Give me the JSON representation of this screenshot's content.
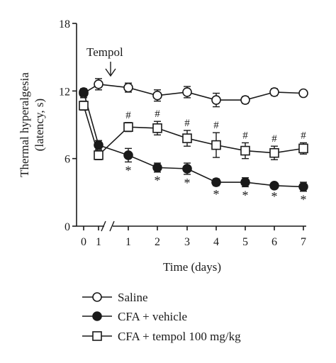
{
  "chart_data": {
    "type": "line",
    "ylabel_line1": "Thermal hyperalgesia",
    "ylabel_line2": "(latency, s)",
    "xlabel": "Time (days)",
    "ylim": [
      0,
      18
    ],
    "yticks": [
      "0",
      "6",
      "12",
      "18"
    ],
    "ytick_values": [
      0,
      6,
      12,
      18
    ],
    "xticks": [
      "0",
      "1",
      "1",
      "2",
      "3",
      "4",
      "5",
      "6",
      "7"
    ],
    "annotation": "Tempol",
    "annotation_arrow": "down",
    "axis_break": true,
    "grid": false,
    "legend_position": "bottom-left",
    "series": [
      {
        "name": "Saline",
        "marker": "open-circle",
        "values": [
          11.8,
          12.6,
          12.3,
          11.6,
          11.9,
          11.2,
          11.2,
          11.9,
          11.8
        ],
        "errors": [
          0.4,
          0.5,
          0.4,
          0.5,
          0.5,
          0.6,
          0.3,
          0.3,
          0.2
        ],
        "annotations": [
          "",
          "",
          "",
          "",
          "",
          "",
          "",
          "",
          ""
        ]
      },
      {
        "name": "CFA + vehicle",
        "marker": "filled-circle",
        "values": [
          11.9,
          7.2,
          6.3,
          5.2,
          5.1,
          3.9,
          3.9,
          3.6,
          3.5
        ],
        "errors": [
          0.3,
          0.4,
          0.6,
          0.4,
          0.5,
          0.3,
          0.4,
          0.2,
          0.4
        ],
        "annotations": [
          "",
          "*",
          "*",
          "*",
          "*",
          "*",
          "*",
          "*",
          "*"
        ]
      },
      {
        "name": "CFA + tempol 100 mg/kg",
        "marker": "open-square",
        "values": [
          10.7,
          6.3,
          8.8,
          8.7,
          7.8,
          7.2,
          6.7,
          6.5,
          6.9
        ],
        "errors": [
          0.4,
          0.4,
          0.4,
          0.6,
          0.7,
          1.1,
          0.7,
          0.6,
          0.5
        ],
        "annotations": [
          "",
          "",
          "#",
          "#",
          "#",
          "#",
          "#",
          "#",
          "#"
        ]
      }
    ],
    "colors": {
      "ink": "#1a1a1a",
      "background": "#ffffff"
    }
  }
}
